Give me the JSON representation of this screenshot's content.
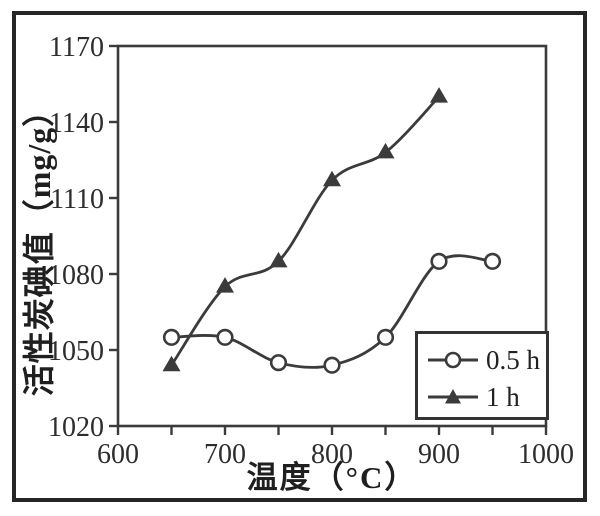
{
  "chart_data": {
    "type": "line",
    "title": "",
    "xlabel": "温度（°C）",
    "ylabel": "活性炭碘值（mg/g）",
    "xlim": [
      600,
      1000
    ],
    "ylim": [
      1020,
      1170
    ],
    "x_ticks": [
      600,
      700,
      800,
      900,
      1000
    ],
    "x_minor_tick_step": 50,
    "y_ticks": [
      1020,
      1050,
      1080,
      1110,
      1140,
      1170
    ],
    "grid": false,
    "legend_position": "inside-lower-right",
    "series": [
      {
        "name": "0.5 h",
        "marker": "open-circle",
        "x": [
          650,
          700,
          750,
          800,
          850,
          900,
          950
        ],
        "y": [
          1055,
          1055,
          1045,
          1044,
          1055,
          1085,
          1085
        ]
      },
      {
        "name": "1 h",
        "marker": "filled-triangle",
        "x": [
          650,
          700,
          750,
          800,
          850,
          900
        ],
        "y": [
          1044,
          1075,
          1085,
          1117,
          1128,
          1150
        ]
      }
    ]
  },
  "colors": {
    "line": "#3b3b3b",
    "text": "#2d2d2d",
    "frame": "#262626",
    "background": "#ffffff"
  }
}
